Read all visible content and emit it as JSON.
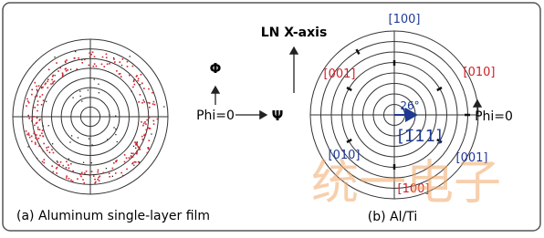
{
  "left_panel": {
    "caption": "(a) Aluminum single-layer film"
  },
  "axes": {
    "phi_symbol": "Φ",
    "phi_zero": "Phi=0",
    "psi_symbol": "Ψ",
    "ln_x_axis": "LN X-axis"
  },
  "right_panel": {
    "caption": "(b) Al/Ti",
    "phi_zero": "Phi=0",
    "angle": "26°",
    "center_label": "[1̄11]",
    "poles": [
      "[100]",
      "[001]",
      "[010]",
      "[010]",
      "[001]",
      "[100]"
    ]
  },
  "watermark": "统一电子"
}
